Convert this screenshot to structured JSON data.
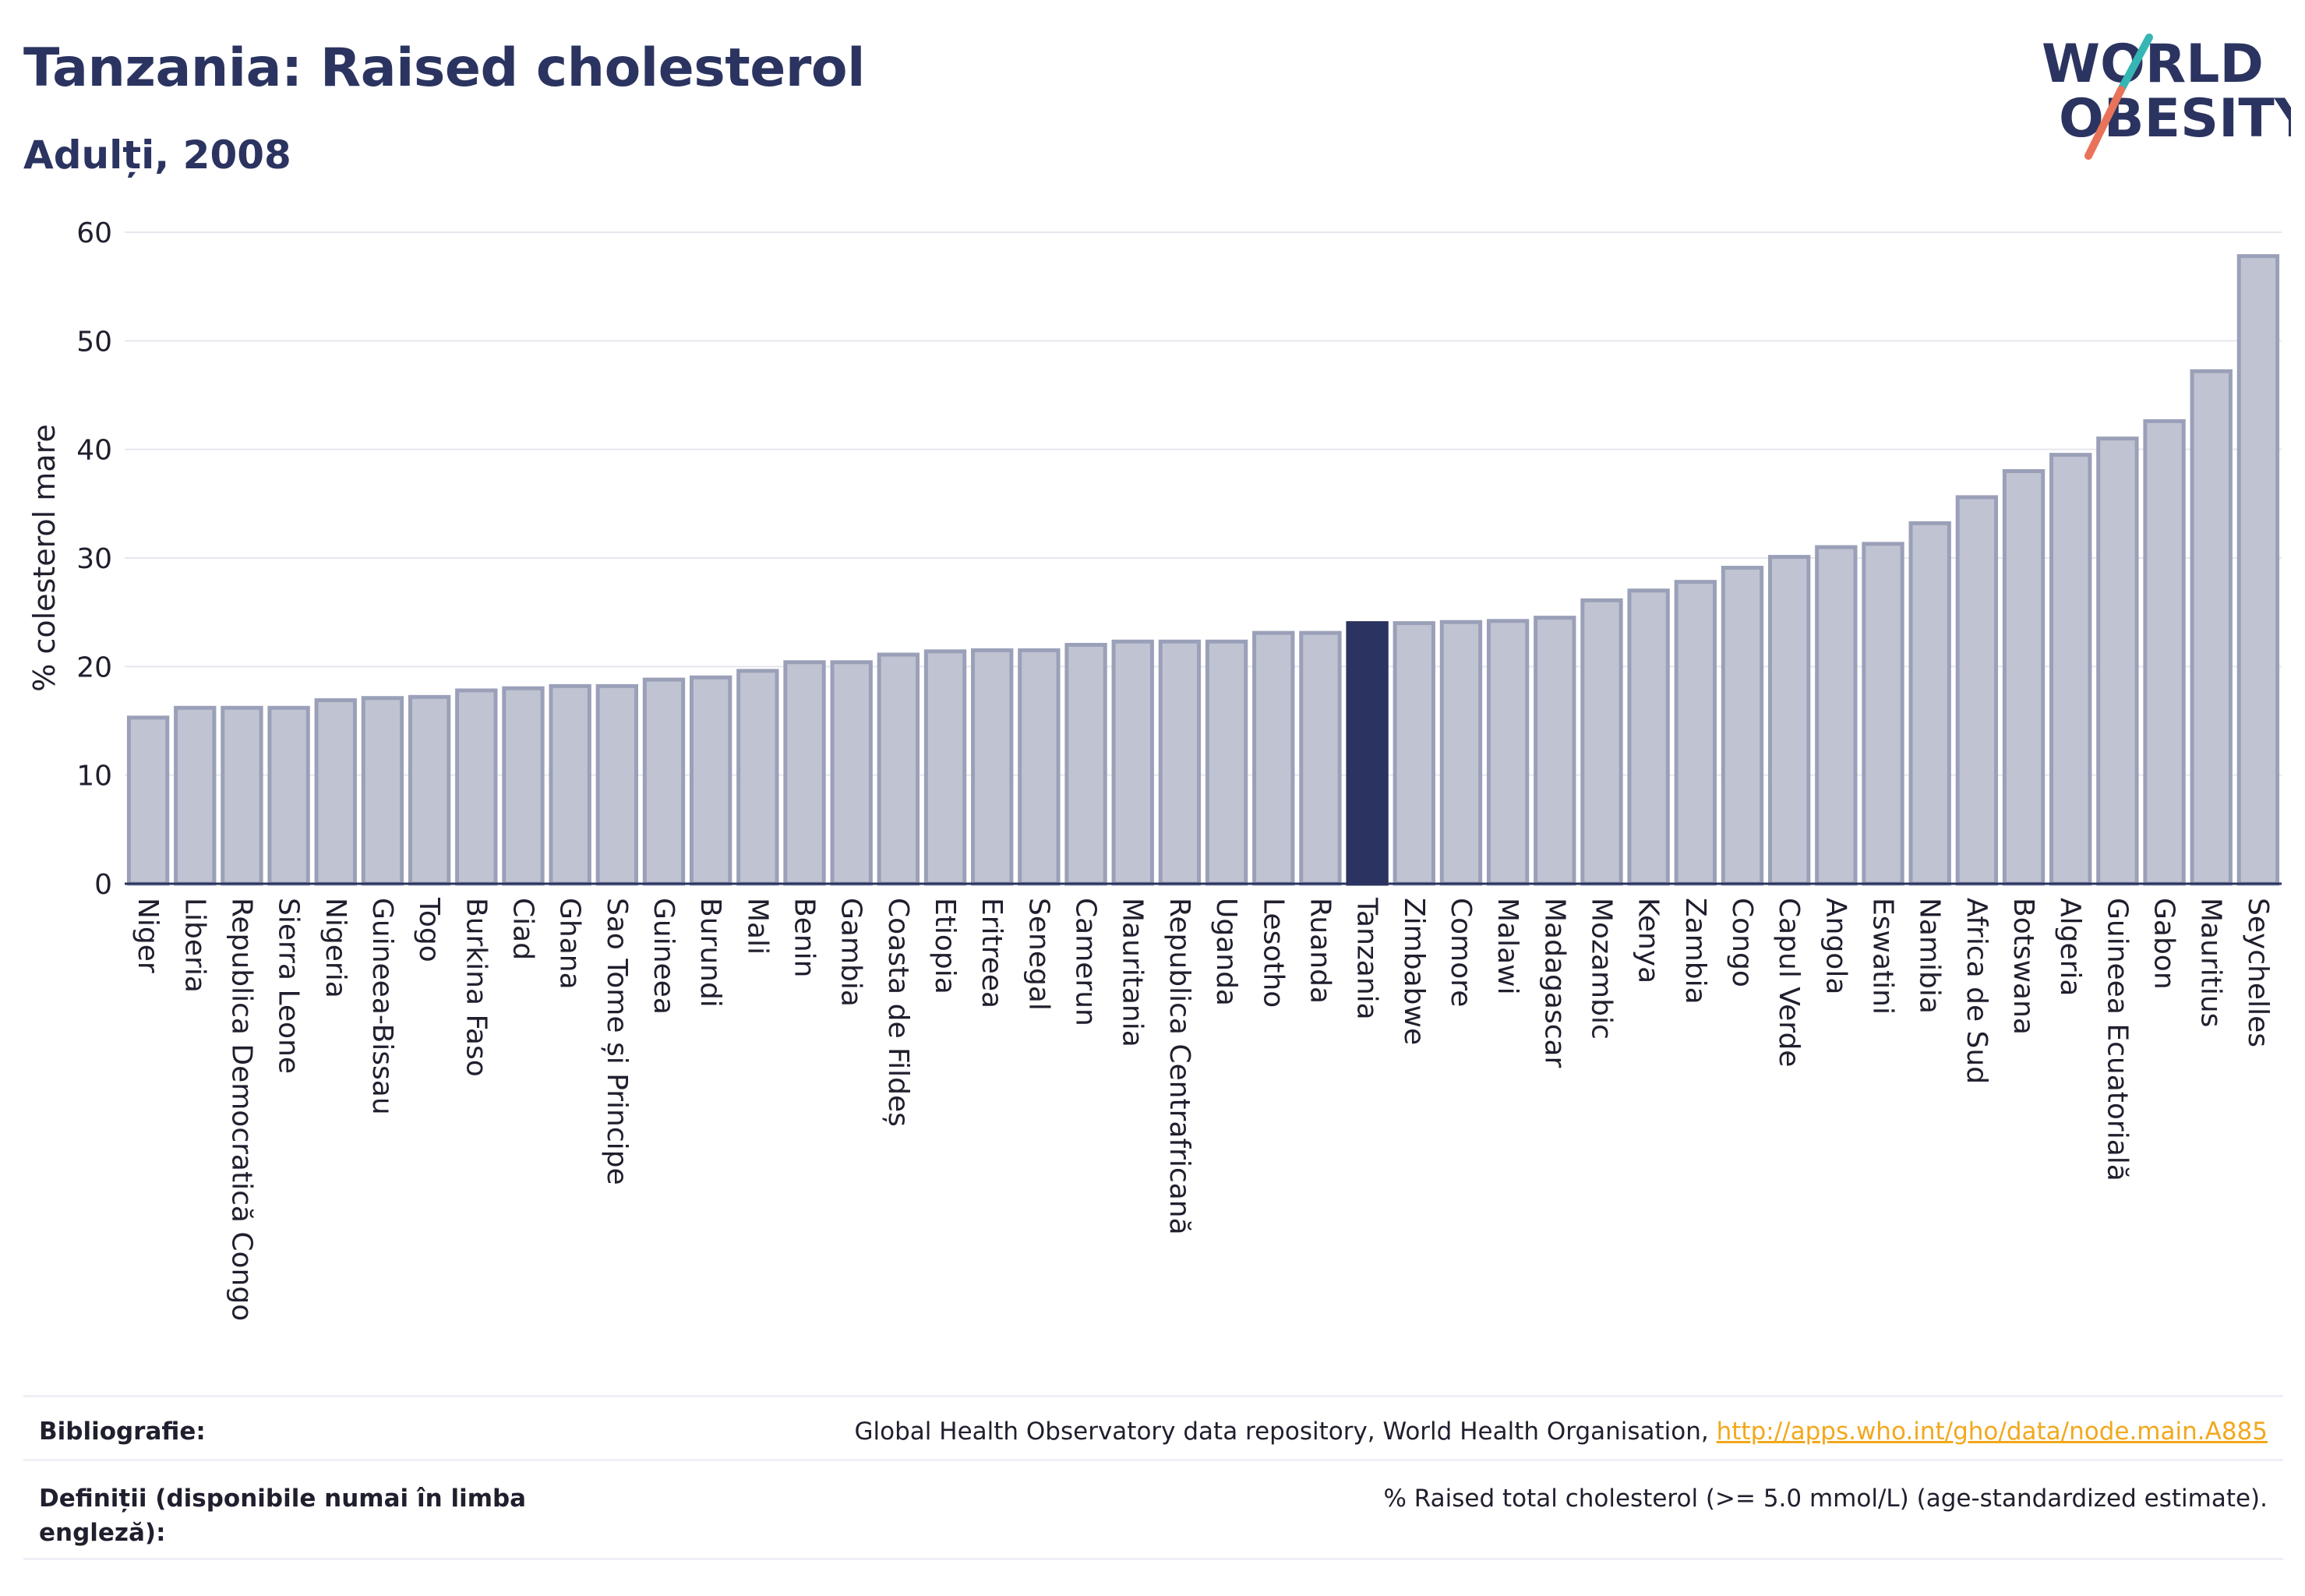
{
  "header": {
    "title": "Tanzania: Raised cholesterol",
    "subtitle": "Adulți, 2008"
  },
  "logo": {
    "line1": "WORLD",
    "line2": "OBESITY",
    "colors": {
      "text": "#2b3460",
      "slash_top": "#35b6b4",
      "slash_bottom": "#e8735a"
    }
  },
  "chart_data": {
    "type": "bar",
    "title": "Tanzania: Raised cholesterol",
    "subtitle": "Adulți, 2008",
    "ylabel": "% colesterol mare",
    "xlabel": "",
    "ylim": [
      0,
      60
    ],
    "yticks": [
      0,
      10,
      20,
      30,
      40,
      50,
      60
    ],
    "grid": true,
    "highlight": "Tanzania",
    "colors": {
      "bar": "#c0c4d2",
      "bar_edge": "#9aa0b8",
      "highlight": "#2b3460"
    },
    "categories": [
      "Niger",
      "Liberia",
      "Republica Democratică Congo",
      "Sierra Leone",
      "Nigeria",
      "Guineea-Bissau",
      "Togo",
      "Burkina Faso",
      "Ciad",
      "Ghana",
      "Sao Tome și Principe",
      "Guineea",
      "Burundi",
      "Mali",
      "Benin",
      "Gambia",
      "Coasta de Fildeș",
      "Etiopia",
      "Eritreea",
      "Senegal",
      "Camerun",
      "Mauritania",
      "Republica Centrafricană",
      "Uganda",
      "Lesotho",
      "Ruanda",
      "Tanzania",
      "Zimbabwe",
      "Comore",
      "Malawi",
      "Madagascar",
      "Mozambic",
      "Kenya",
      "Zambia",
      "Congo",
      "Capul Verde",
      "Angola",
      "Eswatini",
      "Namibia",
      "Africa de Sud",
      "Botswana",
      "Algeria",
      "Guineea Ecuatorială",
      "Gabon",
      "Mauritius",
      "Seychelles"
    ],
    "values": [
      15.3,
      16.2,
      16.2,
      16.2,
      16.9,
      17.1,
      17.2,
      17.8,
      18.0,
      18.2,
      18.2,
      18.8,
      19.0,
      19.6,
      20.4,
      20.4,
      21.1,
      21.4,
      21.5,
      21.5,
      22.0,
      22.3,
      22.3,
      22.3,
      23.1,
      23.1,
      24.0,
      24.0,
      24.1,
      24.2,
      24.5,
      26.1,
      27.0,
      27.8,
      29.1,
      30.1,
      31.0,
      31.3,
      33.2,
      35.6,
      38.0,
      39.5,
      41.0,
      42.6,
      47.2,
      57.8
    ]
  },
  "footer": {
    "bibliography_label": "Bibliografie:",
    "bibliography_text": "Global Health Observatory data repository, World Health Organisation, ",
    "bibliography_link": "http://apps.who.int/gho/data/node.main.A885",
    "definitions_label": "Definiții (disponibile numai în limba engleză):",
    "definitions_text": "% Raised total cholesterol (>= 5.0 mmol/L) (age-standardized estimate)."
  }
}
